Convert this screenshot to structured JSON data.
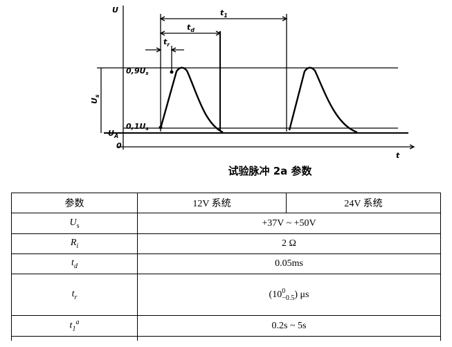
{
  "diagram": {
    "u_axis": "U",
    "t_axis": "t",
    "origin": "0",
    "period": {
      "text": "t",
      "sub": "1"
    },
    "duration": {
      "text": "t",
      "sub": "d"
    },
    "rise": {
      "text": "t",
      "sub": "r"
    },
    "level_high": {
      "text": "0,9U",
      "sub": "s"
    },
    "level_low": {
      "text": "0,1U",
      "sub": "s"
    },
    "amplitude": {
      "text": "U",
      "sub": "s"
    },
    "base": {
      "text": "U",
      "sub": "A"
    }
  },
  "caption": "试验脉冲 2a 参数",
  "table": {
    "header": [
      "参数",
      "12V 系统",
      "24V 系统"
    ],
    "rows": [
      {
        "param": {
          "text": "U",
          "sub": "s"
        },
        "value": "+37V ~ +50V"
      },
      {
        "param": {
          "text": "R",
          "sub": "i"
        },
        "value": "2 Ω"
      },
      {
        "param": {
          "text": "t",
          "sub": "d"
        },
        "value": "0.05ms"
      },
      {
        "param": {
          "text": "t",
          "sub": "r"
        },
        "value": {
          "prefix": "(10",
          "sup": "0",
          "sub": "−0.5",
          "suffix": ") μs"
        }
      },
      {
        "param": {
          "text": "t",
          "sub": "1",
          "sup": "a"
        },
        "value": "0.2s ~ 5s"
      }
    ]
  }
}
